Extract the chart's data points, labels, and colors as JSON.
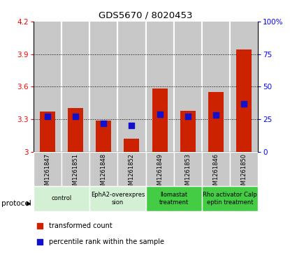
{
  "title": "GDS5670 / 8020453",
  "samples": [
    "GSM1261847",
    "GSM1261851",
    "GSM1261848",
    "GSM1261852",
    "GSM1261849",
    "GSM1261853",
    "GSM1261846",
    "GSM1261850"
  ],
  "red_values": [
    3.37,
    3.4,
    3.29,
    3.12,
    3.58,
    3.38,
    3.55,
    3.94
  ],
  "blue_values": [
    27,
    27,
    22,
    20,
    29,
    27,
    28,
    37
  ],
  "ylim_left": [
    3.0,
    4.2
  ],
  "ylim_right": [
    0,
    100
  ],
  "yticks_left": [
    3.0,
    3.3,
    3.6,
    3.9,
    4.2
  ],
  "yticks_right": [
    0,
    25,
    50,
    75,
    100
  ],
  "ytick_labels_left": [
    "3",
    "3.3",
    "3.6",
    "3.9",
    "4.2"
  ],
  "ytick_labels_right": [
    "0",
    "25",
    "50",
    "75",
    "100%"
  ],
  "groups": [
    {
      "label": "control",
      "samples": [
        0,
        1
      ],
      "color": "#d4f0d4"
    },
    {
      "label": "EphA2-overexpres\nsion",
      "samples": [
        2,
        3
      ],
      "color": "#d4f0d4"
    },
    {
      "label": "llomastat\ntreatment",
      "samples": [
        4,
        5
      ],
      "color": "#44cc44"
    },
    {
      "label": "Rho activator Calp\neptin treatment",
      "samples": [
        6,
        7
      ],
      "color": "#44cc44"
    }
  ],
  "bar_color_red": "#cc2200",
  "bar_color_blue": "#1111cc",
  "bar_width": 0.55,
  "background_sample": "#c8c8c8",
  "legend_items": [
    "transformed count",
    "percentile rank within the sample"
  ],
  "protocol_label": "protocol",
  "blue_square_size": 30,
  "fig_width": 4.15,
  "fig_height": 3.63,
  "dpi": 100
}
